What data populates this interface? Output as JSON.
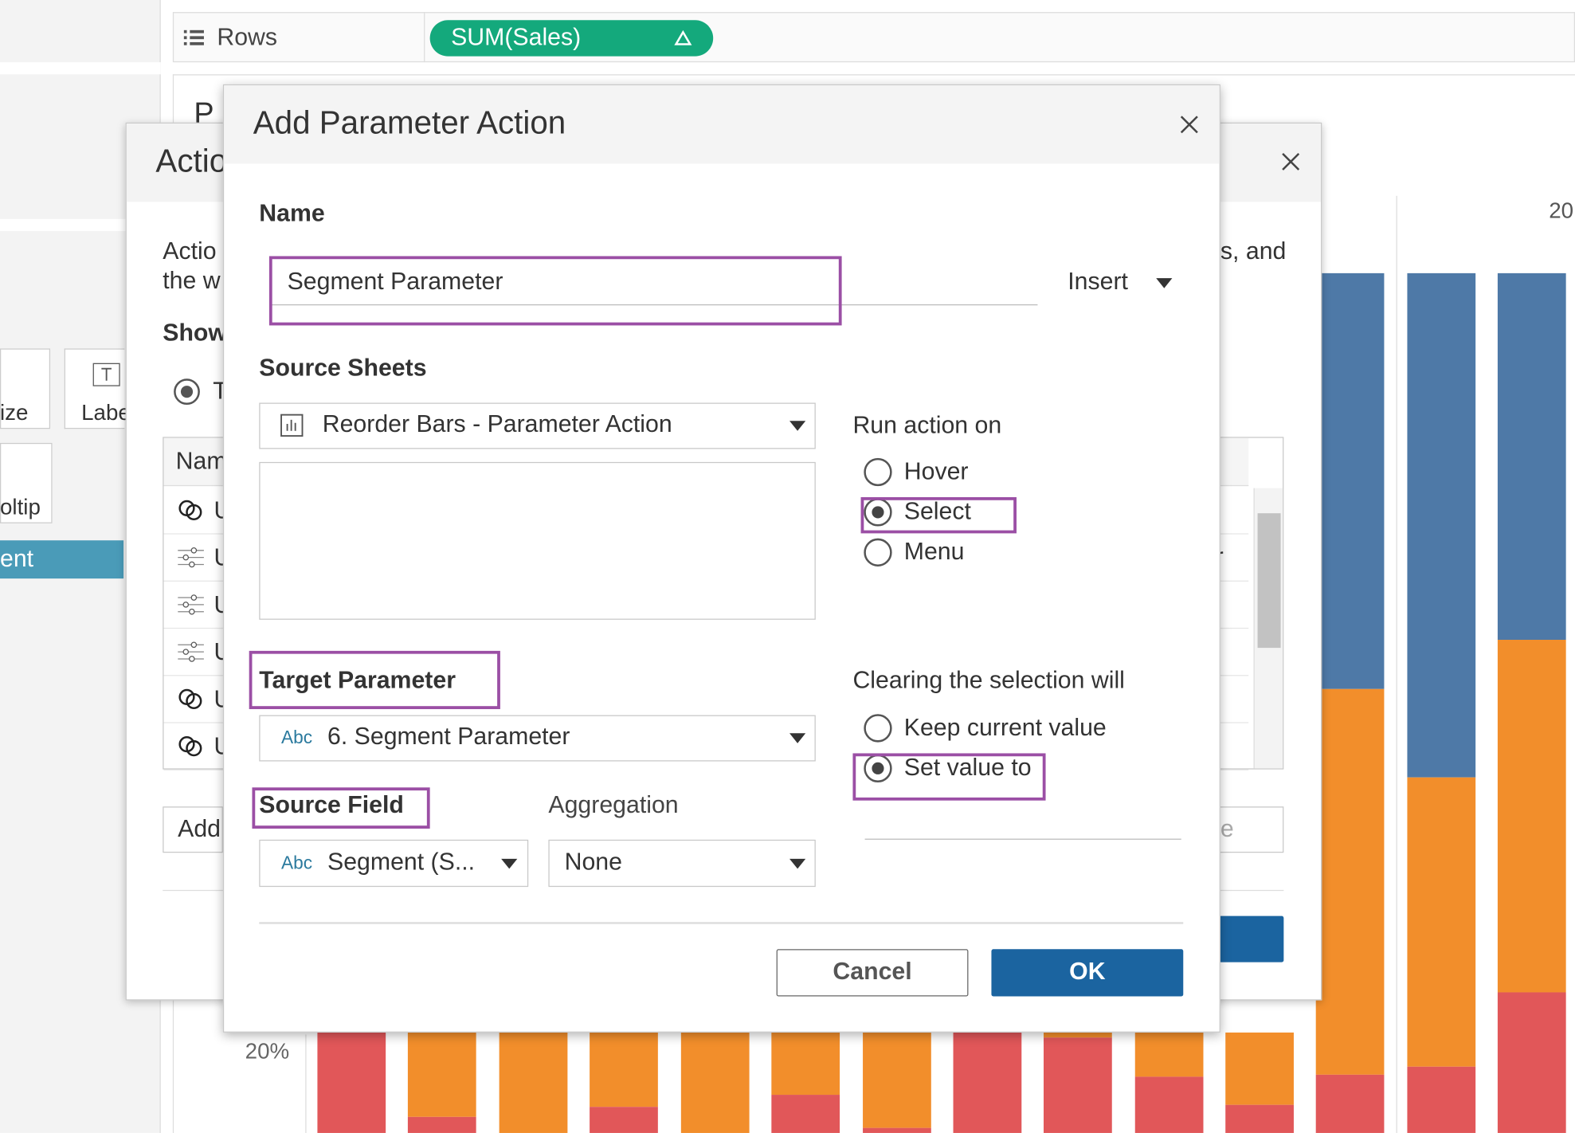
{
  "toolbar": {
    "rows_label": "Rows",
    "pill": "SUM(Sales)"
  },
  "side_panel": {
    "size": "ize",
    "label": "Labe",
    "tooltip": "oltip",
    "selected": "ent"
  },
  "view": {
    "title_fragment": "P",
    "axis_top": "20",
    "axis_tick": "20%"
  },
  "actions_dialog": {
    "title": "Actio",
    "desc_line1": "Actio",
    "desc_line2": "the w",
    "desc_tail": "s, and",
    "show": "Show",
    "radio": "T",
    "table_header": "Nam",
    "row_prefixes": [
      "U",
      "U",
      "U",
      "U",
      "U",
      "U"
    ],
    "row_tail": "r",
    "add": "Add",
    "button_tail": "e"
  },
  "dialog": {
    "title": "Add Parameter Action",
    "name_label": "Name",
    "name_value": "Segment Parameter",
    "insert": "Insert",
    "source_sheets_label": "Source Sheets",
    "source_sheet": "Reorder Bars - Parameter Action",
    "run_action_label": "Run action on",
    "run_action_options": [
      "Hover",
      "Select",
      "Menu"
    ],
    "target_parameter_label": "Target Parameter",
    "target_parameter_type": "Abc",
    "target_parameter": "6. Segment Parameter",
    "clearing_label": "Clearing the selection will",
    "clearing_options": [
      "Keep current value",
      "Set value to"
    ],
    "source_field_label": "Source Field",
    "source_field_type": "Abc",
    "source_field": "Segment (S...",
    "aggregation_label": "Aggregation",
    "aggregation": "None",
    "cancel": "Cancel",
    "ok": "OK"
  }
}
